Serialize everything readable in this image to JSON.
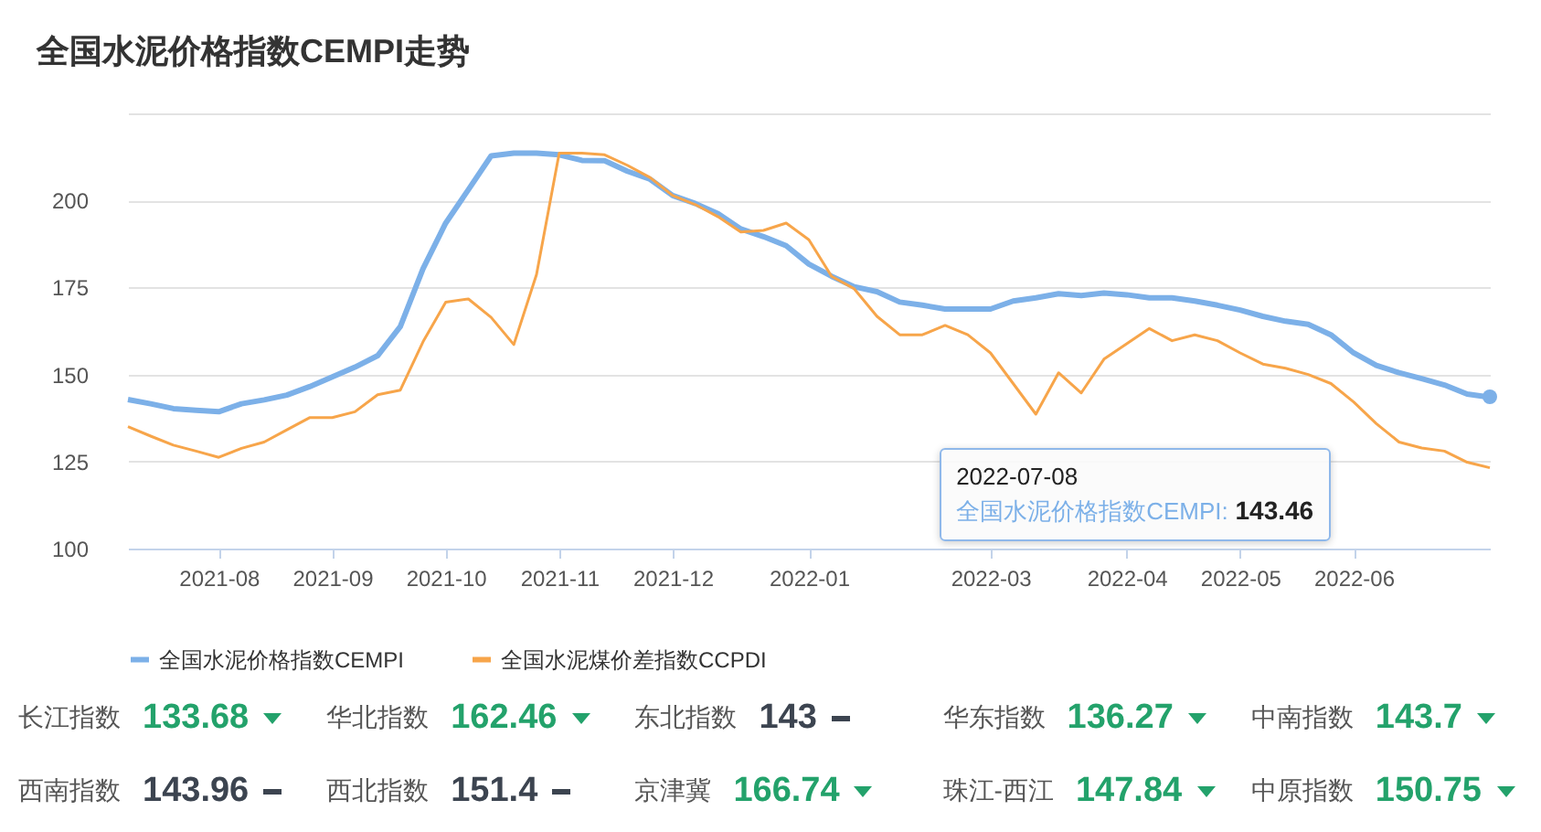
{
  "chart_data": [
    {
      "type": "line",
      "title": "全国水泥价格指数CEMPI走势",
      "categories": [
        null,
        null,
        null,
        null,
        "2021-08",
        null,
        null,
        null,
        null,
        "2021-09",
        null,
        null,
        null,
        null,
        "2021-10",
        null,
        null,
        null,
        null,
        "2021-11",
        null,
        null,
        null,
        null,
        "2021-12",
        null,
        null,
        null,
        null,
        null,
        "2022-01",
        null,
        null,
        null,
        null,
        null,
        null,
        null,
        "2022-03",
        null,
        null,
        null,
        null,
        null,
        "2022-04",
        null,
        null,
        null,
        null,
        "2022-05",
        null,
        null,
        null,
        null,
        "2022-06",
        null,
        null,
        null,
        null,
        null,
        null
      ],
      "series": [
        {
          "name": "全国水泥价格指数CEMPI",
          "color": "#7cb0e8",
          "values": [
            142.8,
            141.6,
            140.2,
            139.7,
            139.3,
            141.6,
            142.7,
            144.1,
            146.5,
            149.3,
            152.1,
            155.4,
            163.8,
            180.4,
            193.5,
            203.1,
            212.8,
            213.6,
            213.6,
            213.1,
            211.5,
            211.4,
            208.4,
            206.1,
            201.4,
            199.1,
            196.2,
            191.8,
            189.6,
            187.0,
            181.7,
            178.2,
            175.2,
            173.8,
            170.8,
            169.9,
            168.8,
            168.8,
            168.8,
            171.1,
            172.0,
            173.2,
            172.7,
            173.4,
            172.9,
            172.0,
            172.0,
            171.1,
            169.9,
            168.5,
            166.7,
            165.3,
            164.4,
            161.4,
            156.2,
            152.6,
            150.5,
            148.8,
            147.0,
            144.4,
            143.46
          ]
        },
        {
          "name": "全国水泥煤价差指数CCPDI",
          "color": "#f7a54a",
          "values": [
            135.0,
            132.3,
            129.7,
            128.0,
            126.2,
            128.8,
            130.6,
            134.1,
            137.6,
            137.6,
            139.3,
            144.2,
            145.5,
            159.4,
            170.8,
            171.7,
            166.4,
            158.6,
            178.7,
            213.6,
            213.6,
            213.1,
            210.1,
            206.6,
            201.4,
            198.8,
            195.3,
            190.9,
            191.4,
            193.5,
            188.7,
            178.2,
            174.6,
            166.7,
            161.4,
            161.4,
            164.1,
            161.4,
            156.2,
            147.4,
            138.6,
            150.5,
            144.7,
            154.4,
            158.8,
            163.2,
            159.7,
            161.4,
            159.7,
            156.2,
            153.0,
            151.8,
            150.0,
            147.4,
            142.1,
            135.9,
            130.6,
            128.9,
            128.0,
            124.8,
            123.2
          ]
        }
      ],
      "ylim": [
        100,
        225
      ],
      "yticks": [
        100,
        125,
        150,
        175,
        200,
        {
          "value": 225,
          "label": null
        }
      ],
      "grid": "y",
      "legend": "bottom",
      "annotations": [
        "2022-07-08",
        "全国水泥价格指数CEMPI: 143.46"
      ]
    },
    {
      "type": "other",
      "annotations": [
        "长江指数",
        "133.68",
        "华北指数",
        "162.46",
        "东北指数",
        "143",
        "华东指数",
        "136.27",
        "中南指数",
        "143.7",
        "西南指数",
        "143.96",
        "西北指数",
        "151.4",
        "京津冀",
        "166.74",
        "珠江-西江",
        "147.84",
        "中原指数",
        "150.75"
      ],
      "colors": [
        "#23a26b",
        "#23a26b",
        "#3c4450",
        "#23a26b",
        "#23a26b",
        "#3c4450",
        "#3c4450",
        "#23a26b",
        "#23a26b",
        "#23a26b"
      ]
    }
  ]
}
